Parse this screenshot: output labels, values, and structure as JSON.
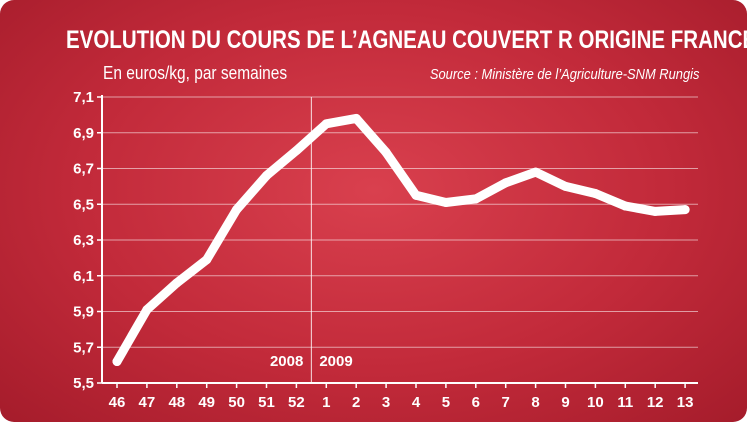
{
  "chart_data": {
    "type": "line",
    "title": "EVOLUTION DU COURS DE L’AGNEAU COUVERT R ORIGINE FRANCE",
    "subtitle": "En euros/kg, par semaines",
    "source": "Source : Ministère de l’Agriculture-SNM Rungis",
    "x": [
      "46",
      "47",
      "48",
      "49",
      "50",
      "51",
      "52",
      "1",
      "2",
      "3",
      "4",
      "5",
      "6",
      "7",
      "8",
      "9",
      "10",
      "11",
      "12",
      "13"
    ],
    "series": [
      {
        "values": [
          5.62,
          5.91,
          6.06,
          6.19,
          6.47,
          6.66,
          6.8,
          6.95,
          6.98,
          6.79,
          6.55,
          6.51,
          6.53,
          6.62,
          6.68,
          6.6,
          6.56,
          6.49,
          6.46,
          6.47
        ]
      }
    ],
    "y_ticks": [
      "5,5",
      "5,7",
      "5,9",
      "6,1",
      "6,3",
      "6,5",
      "6,7",
      "6,9",
      "7,1"
    ],
    "ylim": [
      5.5,
      7.1
    ],
    "grid": true,
    "year_labels": [
      "2008",
      "2009"
    ],
    "line_color": "#ffffff",
    "background_color": "#c8303f"
  }
}
